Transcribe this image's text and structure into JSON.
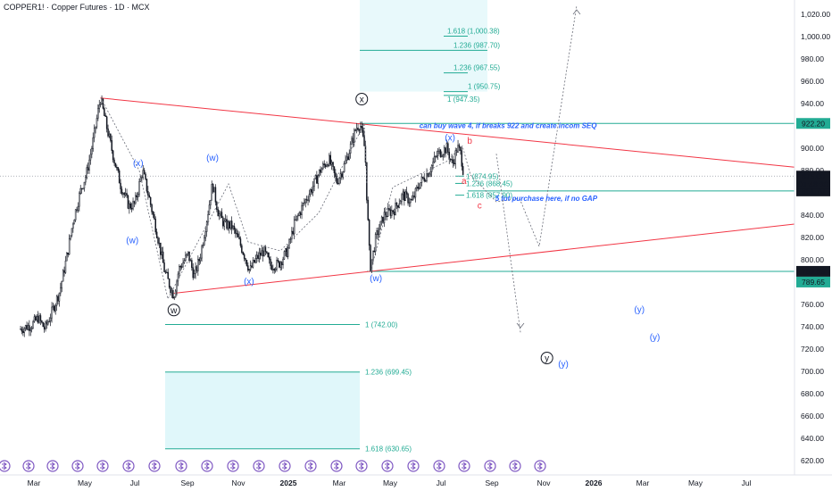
{
  "header": {
    "symbol_title": "COPPER1! · Copper Futures · 1D · MCX"
  },
  "colors": {
    "candle": "#131722",
    "trendline": "#f23645",
    "fib": "#22ab94",
    "fib_zone": "#b2ebf2",
    "wave_label": "#2962ff",
    "note": "#2962ff",
    "pink": "#f23645",
    "price_tag_green": "#22ab94",
    "price_tag_dark": "#131722"
  },
  "chart_data": {
    "type": "candlestick",
    "x_ticks": [
      "Mar",
      "May",
      "Jul",
      "Sep",
      "Nov",
      "2025",
      "Mar",
      "May",
      "Jul",
      "Sep",
      "Nov",
      "2026",
      "Mar",
      "May",
      "Jul"
    ],
    "y_ticks": [
      "620.00",
      "640.00",
      "660.00",
      "680.00",
      "700.00",
      "720.00",
      "740.00",
      "760.00",
      "780.00",
      "800.00",
      "820.00",
      "840.00",
      "860.00",
      "880.00",
      "900.00",
      "920.00",
      "940.00",
      "960.00",
      "980.00",
      "1,000.00",
      "1,020.00"
    ],
    "ylim": [
      612,
      1030
    ],
    "price_series": [
      [
        "2024-02-14",
        738
      ],
      [
        "2024-02-28",
        742
      ],
      [
        "2024-03-06",
        748
      ],
      [
        "2024-03-14",
        738
      ],
      [
        "2024-03-22",
        752
      ],
      [
        "2024-04-01",
        772
      ],
      [
        "2024-04-10",
        805
      ],
      [
        "2024-04-17",
        835
      ],
      [
        "2024-04-26",
        862
      ],
      [
        "2024-05-03",
        877
      ],
      [
        "2024-05-10",
        902
      ],
      [
        "2024-05-20",
        945
      ],
      [
        "2024-05-28",
        918
      ],
      [
        "2024-06-05",
        892
      ],
      [
        "2024-06-14",
        866
      ],
      [
        "2024-06-24",
        848
      ],
      [
        "2024-07-01",
        850
      ],
      [
        "2024-07-10",
        880
      ],
      [
        "2024-07-18",
        855
      ],
      [
        "2024-07-26",
        828
      ],
      [
        "2024-08-05",
        790
      ],
      [
        "2024-08-12",
        775
      ],
      [
        "2024-08-16",
        768
      ],
      [
        "2024-08-22",
        792
      ],
      [
        "2024-09-02",
        805
      ],
      [
        "2024-09-09",
        785
      ],
      [
        "2024-09-16",
        802
      ],
      [
        "2024-09-25",
        840
      ],
      [
        "2024-10-01",
        868
      ],
      [
        "2024-10-08",
        842
      ],
      [
        "2024-10-15",
        832
      ],
      [
        "2024-10-24",
        830
      ],
      [
        "2024-11-01",
        818
      ],
      [
        "2024-11-08",
        805
      ],
      [
        "2024-11-15",
        790
      ],
      [
        "2024-11-22",
        800
      ],
      [
        "2024-12-02",
        808
      ],
      [
        "2024-12-10",
        795
      ],
      [
        "2024-12-20",
        796
      ],
      [
        "2024-12-31",
        808
      ],
      [
        "2025-01-08",
        832
      ],
      [
        "2025-01-20",
        852
      ],
      [
        "2025-01-29",
        865
      ],
      [
        "2025-02-07",
        880
      ],
      [
        "2025-02-17",
        890
      ],
      [
        "2025-02-26",
        870
      ],
      [
        "2025-03-06",
        882
      ],
      [
        "2025-03-14",
        900
      ],
      [
        "2025-03-21",
        918
      ],
      [
        "2025-03-26",
        922
      ],
      [
        "2025-04-01",
        898
      ],
      [
        "2025-04-03",
        858
      ],
      [
        "2025-04-07",
        792
      ],
      [
        "2025-04-14",
        820
      ],
      [
        "2025-04-24",
        840
      ],
      [
        "2025-05-06",
        845
      ],
      [
        "2025-05-16",
        858
      ],
      [
        "2025-05-27",
        852
      ],
      [
        "2025-06-05",
        868
      ],
      [
        "2025-06-17",
        880
      ],
      [
        "2025-06-27",
        895
      ],
      [
        "2025-07-08",
        900
      ],
      [
        "2025-07-15",
        885
      ],
      [
        "2025-07-21",
        901
      ],
      [
        "2025-07-25",
        895
      ],
      [
        "2025-07-29",
        875
      ]
    ],
    "current_price": "875.00",
    "countdown": "01:48:30",
    "price_levels": [
      {
        "label": "922.20",
        "value": 922.2,
        "style": "green"
      },
      {
        "label": "861.70",
        "value": 861.7,
        "style": "dark"
      },
      {
        "label": "789.65",
        "value": 789.65,
        "style": "dark"
      },
      {
        "label": "789.65",
        "value": 789.65,
        "style": "green",
        "offset": 1
      }
    ],
    "fib_upper": [
      {
        "label": "1.618 (1,000.38)",
        "value": 1000.38
      },
      {
        "label": "1.236 (987.70)",
        "value": 987.7
      },
      {
        "label": "1.236 (967.55)",
        "value": 967.55
      },
      {
        "label": "1 (950.75)",
        "value": 950.75
      },
      {
        "label": "1 (947.35)",
        "value": 947.35
      }
    ],
    "fib_near": [
      {
        "label": "1 (874.95)",
        "value": 874.95
      },
      {
        "label": "1.236 (868.45)",
        "value": 868.45
      },
      {
        "label": "1.618 (857.90)",
        "value": 857.9
      }
    ],
    "fib_lower": [
      {
        "label": "1 (742.00)",
        "value": 742.0
      },
      {
        "label": "1.236 (699.45)",
        "value": 699.45
      },
      {
        "label": "1.618 (630.65)",
        "value": 630.65
      }
    ],
    "wave_labels": [
      {
        "text": "(x)",
        "date": "2024-07-05",
        "value": 884
      },
      {
        "text": "(w)",
        "date": "2024-06-28",
        "value": 815
      },
      {
        "text": "(w)",
        "date": "2024-10-01",
        "value": 889
      },
      {
        "text": "(x)",
        "date": "2024-11-14",
        "value": 778
      },
      {
        "text": "(w)",
        "date": "2025-04-14",
        "value": 781
      },
      {
        "text": "(x)",
        "date": "2025-07-12",
        "value": 907
      },
      {
        "text": "(y)",
        "date": "2026-02-25",
        "value": 753
      },
      {
        "text": "(y)",
        "date": "2026-03-15",
        "value": 728
      },
      {
        "text": "(y)",
        "date": "2025-11-25",
        "value": 704
      }
    ],
    "circled_labels": [
      {
        "text": "w",
        "date": "2024-08-16",
        "value": 755
      },
      {
        "text": "x",
        "date": "2025-03-28",
        "value": 944
      },
      {
        "text": "y",
        "date": "2025-11-05",
        "value": 712
      }
    ],
    "pink_labels": [
      {
        "text": "b",
        "date": "2025-08-05",
        "value": 904
      },
      {
        "text": "a",
        "date": "2025-07-29",
        "value": 868
      },
      {
        "text": "c",
        "date": "2025-08-17",
        "value": 846
      }
    ],
    "annotations": [
      {
        "text": "can buy wave 4, if breaks 922 and create incom SEQ",
        "date": "2025-06-05",
        "value": 918
      },
      {
        "text": "5 lot purchase here, if no GAP",
        "date": "2025-09-05",
        "value": 853
      }
    ]
  }
}
